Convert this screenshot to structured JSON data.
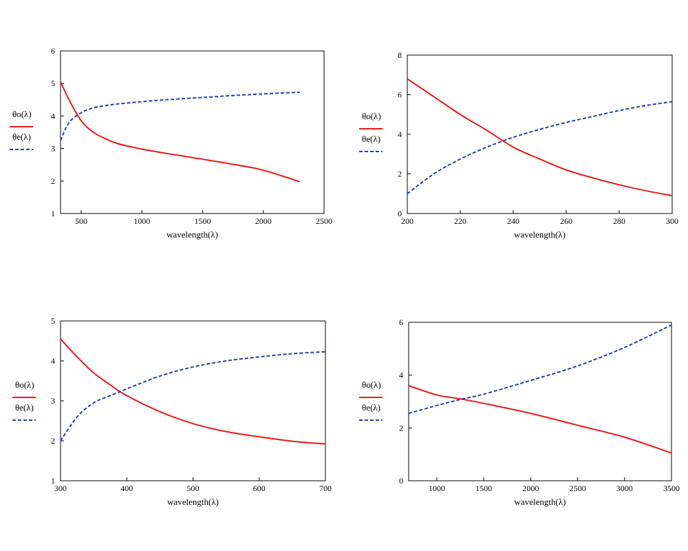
{
  "colors": {
    "theta_o": "#e8191b",
    "theta_e": "#1f3fa8",
    "axis": "#000000"
  },
  "chart_data": [
    {
      "type": "line",
      "xlabel": "wavelength(λ)",
      "xlim": [
        330,
        2500
      ],
      "ylim": [
        1,
        6
      ],
      "xticks": [
        500,
        1000,
        1500,
        2000,
        2500
      ],
      "yticks": [
        1,
        2,
        3,
        4,
        5,
        6
      ],
      "grid": false,
      "legend_position": "left",
      "series": [
        {
          "name": "θo(λ)",
          "style": "solid",
          "color": "#e8191b",
          "x": [
            330,
            400,
            500,
            600,
            700,
            800,
            1000,
            1200,
            1500,
            1800,
            2000,
            2300
          ],
          "y": [
            5.05,
            4.5,
            3.85,
            3.5,
            3.3,
            3.15,
            2.98,
            2.85,
            2.67,
            2.48,
            2.33,
            1.98
          ]
        },
        {
          "name": "θe(λ)",
          "style": "dashed",
          "color": "#1f3fa8",
          "x": [
            330,
            400,
            500,
            600,
            700,
            800,
            1000,
            1200,
            1500,
            1800,
            2000,
            2300
          ],
          "y": [
            3.25,
            3.8,
            4.1,
            4.25,
            4.32,
            4.37,
            4.44,
            4.5,
            4.57,
            4.64,
            4.68,
            4.73
          ]
        }
      ]
    },
    {
      "type": "line",
      "xlabel": "wavelength(λ)",
      "xlim": [
        200,
        300
      ],
      "ylim": [
        0,
        8
      ],
      "xticks": [
        200,
        220,
        240,
        260,
        280,
        300
      ],
      "yticks": [
        0,
        2,
        4,
        6,
        8
      ],
      "grid": false,
      "legend_position": "left",
      "series": [
        {
          "name": "θo(λ)",
          "style": "solid",
          "color": "#e8191b",
          "x": [
            200,
            210,
            220,
            230,
            240,
            250,
            260,
            270,
            280,
            290,
            300
          ],
          "y": [
            6.8,
            5.9,
            5.0,
            4.2,
            3.35,
            2.75,
            2.2,
            1.8,
            1.45,
            1.15,
            0.9
          ]
        },
        {
          "name": "θe(λ)",
          "style": "dashed",
          "color": "#1f3fa8",
          "x": [
            200,
            210,
            220,
            230,
            240,
            250,
            260,
            270,
            280,
            290,
            300
          ],
          "y": [
            1.0,
            2.0,
            2.75,
            3.35,
            3.85,
            4.25,
            4.6,
            4.9,
            5.2,
            5.45,
            5.65
          ]
        }
      ]
    },
    {
      "type": "line",
      "xlabel": "wavelength(λ)",
      "xlim": [
        300,
        700
      ],
      "ylim": [
        1,
        5
      ],
      "xticks": [
        300,
        400,
        500,
        600,
        700
      ],
      "yticks": [
        1,
        2,
        3,
        4,
        5
      ],
      "grid": false,
      "legend_position": "left",
      "series": [
        {
          "name": "θo(λ)",
          "style": "solid",
          "color": "#e8191b",
          "x": [
            300,
            325,
            350,
            375,
            400,
            450,
            500,
            550,
            600,
            650,
            700
          ],
          "y": [
            4.55,
            4.1,
            3.7,
            3.4,
            3.13,
            2.73,
            2.43,
            2.23,
            2.1,
            1.99,
            1.92
          ]
        },
        {
          "name": "θe(λ)",
          "style": "dashed",
          "color": "#1f3fa8",
          "x": [
            300,
            325,
            350,
            375,
            400,
            450,
            500,
            550,
            600,
            650,
            700
          ],
          "y": [
            2.0,
            2.6,
            2.95,
            3.13,
            3.3,
            3.62,
            3.85,
            4.0,
            4.1,
            4.18,
            4.23
          ]
        }
      ]
    },
    {
      "type": "line",
      "xlabel": "wavelength(λ)",
      "xlim": [
        700,
        3500
      ],
      "ylim": [
        0,
        6
      ],
      "xticks": [
        1000,
        1500,
        2000,
        2500,
        3000,
        3500
      ],
      "yticks": [
        0,
        2,
        4,
        6
      ],
      "grid": false,
      "legend_position": "left",
      "series": [
        {
          "name": "θo(λ)",
          "style": "solid",
          "color": "#e8191b",
          "x": [
            700,
            1000,
            1250,
            1500,
            2000,
            2500,
            3000,
            3500
          ],
          "y": [
            3.6,
            3.25,
            3.1,
            2.93,
            2.55,
            2.1,
            1.65,
            1.05
          ]
        },
        {
          "name": "θe(λ)",
          "style": "dashed",
          "color": "#1f3fa8",
          "x": [
            700,
            1000,
            1250,
            1500,
            2000,
            2500,
            3000,
            3500
          ],
          "y": [
            2.55,
            2.85,
            3.08,
            3.28,
            3.8,
            4.35,
            5.05,
            5.9
          ]
        }
      ]
    }
  ]
}
